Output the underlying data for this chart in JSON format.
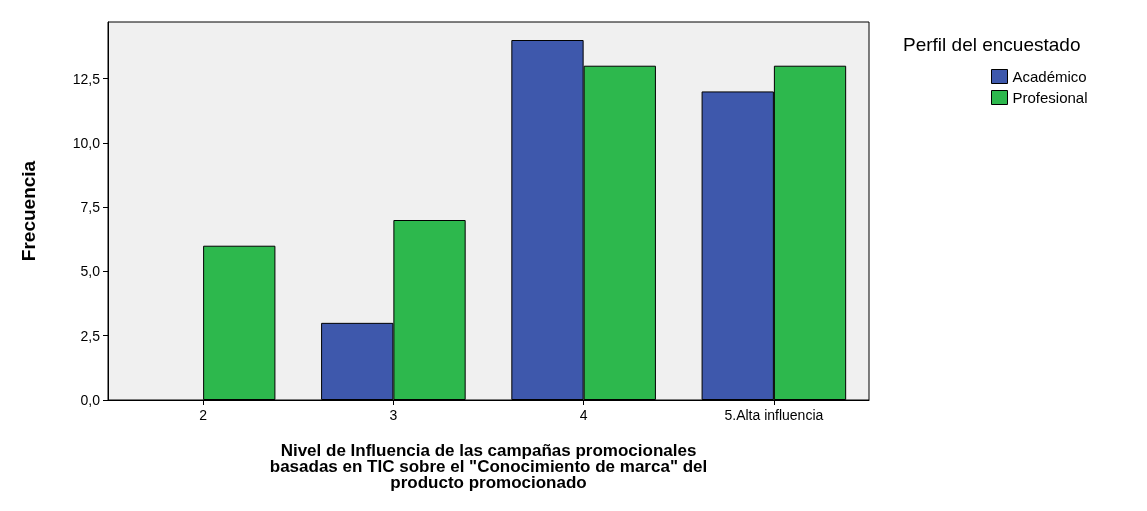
{
  "chart_data": {
    "type": "bar",
    "xlabel": "Nivel de Influencia de las campañas promocionales\nbasadas en TIC sobre el \"Conocimiento de marca\" del\nproducto promocionado",
    "ylabel": "Frecuencia",
    "legend_title": "Perfil del encuestado",
    "categories": [
      "2",
      "3",
      "4",
      "5.Alta influencia"
    ],
    "series": [
      {
        "name": "Académico",
        "color": "#3e58ac",
        "values": [
          null,
          3,
          14,
          12
        ]
      },
      {
        "name": "Profesional",
        "color": "#2db84d",
        "values": [
          6,
          7,
          13,
          13
        ]
      }
    ],
    "ylim": [
      0,
      14.7
    ],
    "yticks": [
      {
        "value": 0,
        "label": "0,0"
      },
      {
        "value": 2.5,
        "label": "2,5"
      },
      {
        "value": 5,
        "label": "5,0"
      },
      {
        "value": 7.5,
        "label": "7,5"
      },
      {
        "value": 10,
        "label": "10,0"
      },
      {
        "value": 12.5,
        "label": "12,5"
      }
    ],
    "grid": false,
    "legend": "top right"
  }
}
